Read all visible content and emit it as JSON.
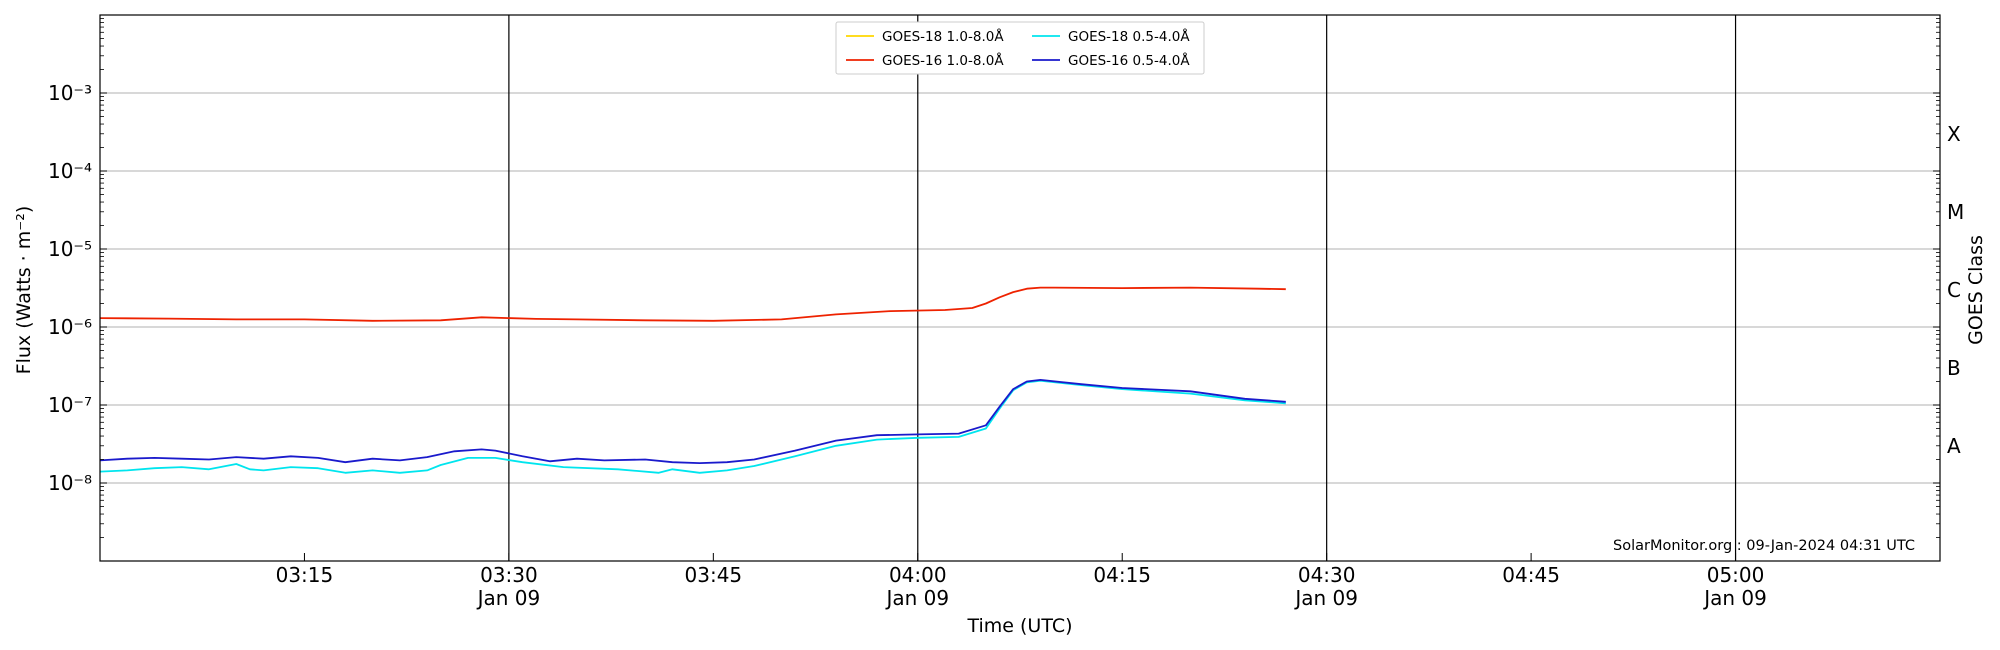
{
  "chart_data": {
    "type": "line",
    "title": "",
    "xlabel": "Time (UTC)",
    "ylabel": "Flux (Watts · m⁻²)",
    "ylabel_right": "GOES Class",
    "y_scale": "log",
    "ylim": [
      1e-09,
      0.01
    ],
    "xlim": [
      "2024-01-09 03:00",
      "2024-01-09 05:15"
    ],
    "grid": "horizontal",
    "legend_position": "top-center",
    "y_ticks": [
      {
        "value": 1e-08,
        "label": "10⁻⁸"
      },
      {
        "value": 1e-07,
        "label": "10⁻⁷"
      },
      {
        "value": 1e-06,
        "label": "10⁻⁶"
      },
      {
        "value": 1e-05,
        "label": "10⁻⁵"
      },
      {
        "value": 0.0001,
        "label": "10⁻⁴"
      },
      {
        "value": 0.001,
        "label": "10⁻³"
      }
    ],
    "x_ticks": [
      {
        "time": "03:15",
        "label": "03:15",
        "sublabel": "",
        "major": false
      },
      {
        "time": "03:30",
        "label": "03:30",
        "sublabel": "Jan 09",
        "major": true
      },
      {
        "time": "03:45",
        "label": "03:45",
        "sublabel": "",
        "major": false
      },
      {
        "time": "04:00",
        "label": "04:00",
        "sublabel": "Jan 09",
        "major": true
      },
      {
        "time": "04:15",
        "label": "04:15",
        "sublabel": "",
        "major": false
      },
      {
        "time": "04:30",
        "label": "04:30",
        "sublabel": "Jan 09",
        "major": true
      },
      {
        "time": "04:45",
        "label": "04:45",
        "sublabel": "",
        "major": false
      },
      {
        "time": "05:00",
        "label": "05:00",
        "sublabel": "Jan 09",
        "major": true
      }
    ],
    "goes_classes": [
      {
        "label": "A",
        "value": 3e-08
      },
      {
        "label": "B",
        "value": 3e-07
      },
      {
        "label": "C",
        "value": 3e-06
      },
      {
        "label": "M",
        "value": 3e-05
      },
      {
        "label": "X",
        "value": 0.0003
      }
    ],
    "annotation": "SolarMonitor.org : 09-Jan-2024 04:31 UTC",
    "series": [
      {
        "name": "GOES-18 1.0-8.0Å",
        "color": "#ffd700",
        "x": [],
        "values": []
      },
      {
        "name": "GOES-16 1.0-8.0Å",
        "color": "#ee2200",
        "x": [
          "03:00",
          "03:05",
          "03:10",
          "03:15",
          "03:20",
          "03:25",
          "03:28",
          "03:32",
          "03:35",
          "03:40",
          "03:45",
          "03:50",
          "03:54",
          "03:58",
          "04:02",
          "04:04",
          "04:05",
          "04:06",
          "04:07",
          "04:08",
          "04:09",
          "04:10",
          "04:15",
          "04:20",
          "04:25",
          "04:27"
        ],
        "values": [
          1.3e-06,
          1.28e-06,
          1.25e-06,
          1.25e-06,
          1.2e-06,
          1.22e-06,
          1.33e-06,
          1.27e-06,
          1.25e-06,
          1.22e-06,
          1.2e-06,
          1.25e-06,
          1.45e-06,
          1.6e-06,
          1.65e-06,
          1.75e-06,
          2e-06,
          2.4e-06,
          2.8e-06,
          3.1e-06,
          3.2e-06,
          3.2e-06,
          3.15e-06,
          3.2e-06,
          3.1e-06,
          3.05e-06
        ]
      },
      {
        "name": "GOES-18 0.5-4.0Å",
        "color": "#00e5ee",
        "x": [
          "03:00",
          "03:02",
          "03:04",
          "03:06",
          "03:08",
          "03:10",
          "03:11",
          "03:12",
          "03:14",
          "03:16",
          "03:18",
          "03:20",
          "03:22",
          "03:24",
          "03:25",
          "03:27",
          "03:29",
          "03:31",
          "03:34",
          "03:38",
          "03:41",
          "03:42",
          "03:44",
          "03:46",
          "03:48",
          "03:51",
          "03:54",
          "03:57",
          "04:00",
          "04:03",
          "04:05",
          "04:06",
          "04:07",
          "04:08",
          "04:09",
          "04:12",
          "04:15",
          "04:20",
          "04:24",
          "04:27"
        ],
        "values": [
          1.4e-08,
          1.45e-08,
          1.55e-08,
          1.6e-08,
          1.5e-08,
          1.75e-08,
          1.5e-08,
          1.45e-08,
          1.6e-08,
          1.55e-08,
          1.35e-08,
          1.45e-08,
          1.35e-08,
          1.45e-08,
          1.7e-08,
          2.1e-08,
          2.1e-08,
          1.85e-08,
          1.6e-08,
          1.5e-08,
          1.35e-08,
          1.5e-08,
          1.35e-08,
          1.45e-08,
          1.65e-08,
          2.2e-08,
          3e-08,
          3.6e-08,
          3.8e-08,
          3.9e-08,
          5e-08,
          9e-08,
          1.55e-07,
          1.95e-07,
          2.05e-07,
          1.8e-07,
          1.6e-07,
          1.4e-07,
          1.15e-07,
          1.05e-07
        ]
      },
      {
        "name": "GOES-16 0.5-4.0Å",
        "color": "#1a1acc",
        "x": [
          "03:00",
          "03:02",
          "03:04",
          "03:06",
          "03:08",
          "03:10",
          "03:12",
          "03:14",
          "03:16",
          "03:18",
          "03:20",
          "03:22",
          "03:24",
          "03:26",
          "03:28",
          "03:29",
          "03:31",
          "03:33",
          "03:35",
          "03:37",
          "03:40",
          "03:42",
          "03:44",
          "03:46",
          "03:48",
          "03:51",
          "03:54",
          "03:57",
          "04:00",
          "04:03",
          "04:05",
          "04:06",
          "04:07",
          "04:08",
          "04:09",
          "04:12",
          "04:15",
          "04:20",
          "04:24",
          "04:27"
        ],
        "values": [
          1.95e-08,
          2.05e-08,
          2.1e-08,
          2.05e-08,
          2e-08,
          2.15e-08,
          2.05e-08,
          2.2e-08,
          2.1e-08,
          1.85e-08,
          2.05e-08,
          1.95e-08,
          2.15e-08,
          2.55e-08,
          2.7e-08,
          2.6e-08,
          2.2e-08,
          1.9e-08,
          2.05e-08,
          1.95e-08,
          2e-08,
          1.85e-08,
          1.8e-08,
          1.85e-08,
          2e-08,
          2.6e-08,
          3.5e-08,
          4.1e-08,
          4.2e-08,
          4.3e-08,
          5.5e-08,
          9.5e-08,
          1.6e-07,
          2e-07,
          2.1e-07,
          1.85e-07,
          1.65e-07,
          1.5e-07,
          1.2e-07,
          1.1e-07
        ]
      }
    ]
  }
}
